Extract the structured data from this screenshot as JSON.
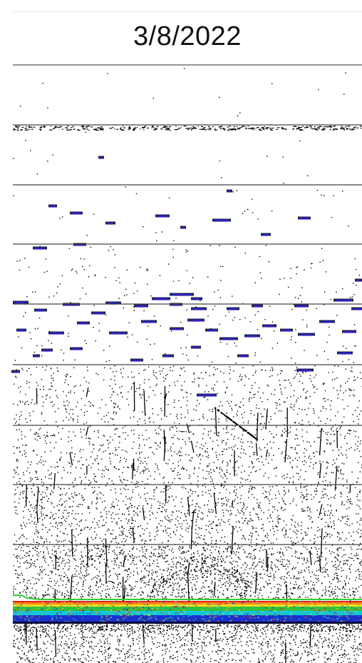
{
  "header": {
    "date": "3/8/2022"
  },
  "echogram": {
    "description_free": true,
    "depth_grid_lines": 9,
    "colors": {
      "background": "#ffffff",
      "grid_line": "#444444",
      "noise": "#000000",
      "fish_core": "#1a22c8",
      "fish_edge": "#6a2a9a",
      "bottom_red": "#e0201a",
      "bottom_orange": "#ff8a1a",
      "bottom_yellow": "#f0e020",
      "bottom_green": "#30c040",
      "bottom_cyan": "#10c8d8",
      "bottom_blue": "#1a30d0",
      "bottom_line": "#33cc33"
    }
  }
}
